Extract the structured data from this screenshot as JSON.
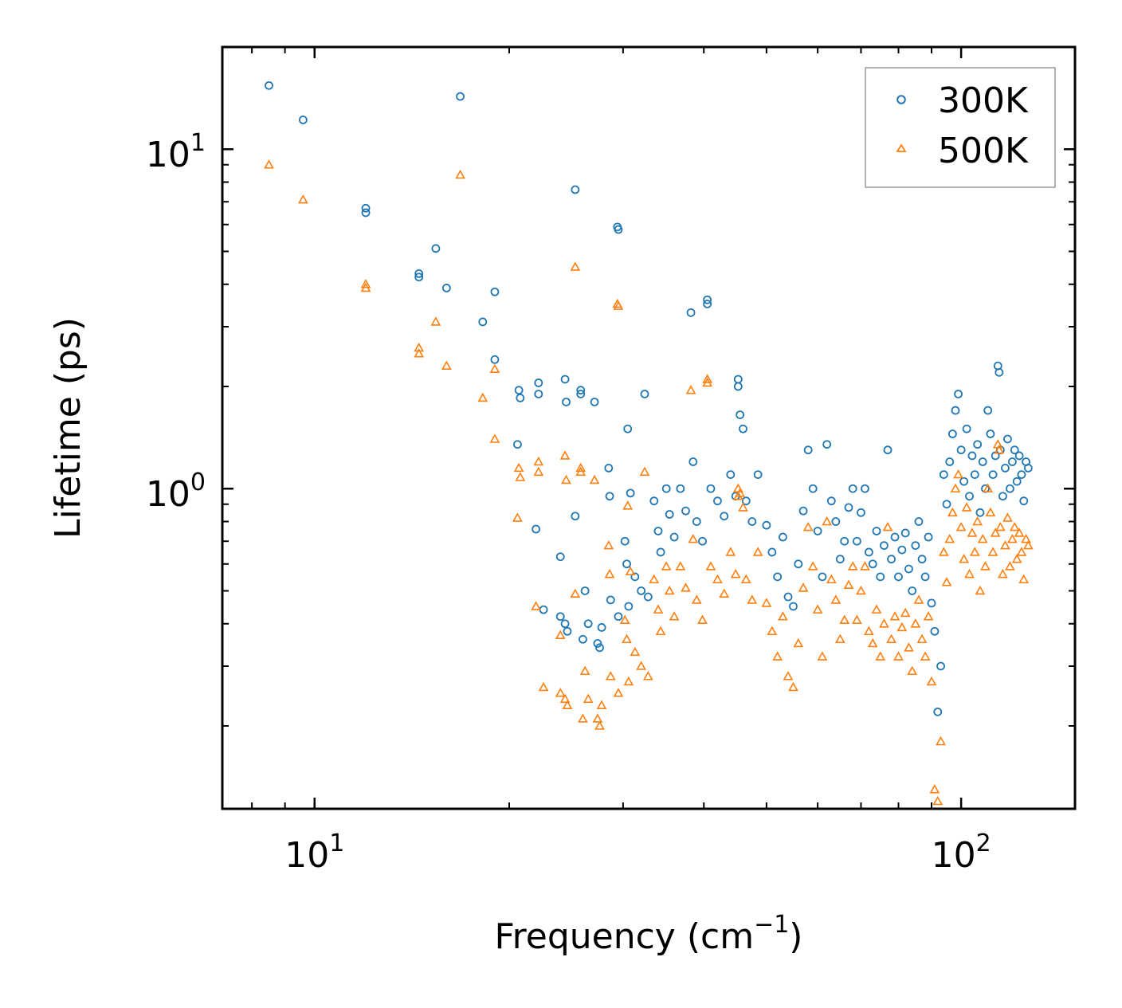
{
  "chart_data": {
    "type": "scatter",
    "title": "",
    "xlabel": "Frequency",
    "xlabel_unit_base": "(cm",
    "xlabel_unit_exp": "−1",
    "xlabel_unit_close": ")",
    "ylabel": "Lifetime (ps)",
    "xscale": "log",
    "yscale": "log",
    "xlim": [
      7.2,
      150
    ],
    "ylim": [
      0.114,
      20
    ],
    "grid": false,
    "legend_position": "top-right",
    "x_ticks": [
      {
        "value": 10,
        "base": "10",
        "exp": "1"
      },
      {
        "value": 100,
        "base": "10",
        "exp": "2"
      }
    ],
    "y_ticks": [
      {
        "value": 1,
        "base": "10",
        "exp": "0"
      },
      {
        "value": 10,
        "base": "10",
        "exp": "1"
      }
    ],
    "series": [
      {
        "name": "300K",
        "marker": "circle",
        "color": "#1f77b4",
        "points": [
          [
            8.5,
            15.4
          ],
          [
            9.6,
            12.2
          ],
          [
            12.0,
            6.7
          ],
          [
            12.0,
            6.5
          ],
          [
            14.5,
            4.3
          ],
          [
            14.5,
            4.2
          ],
          [
            15.4,
            5.1
          ],
          [
            16.0,
            3.9
          ],
          [
            16.8,
            14.3
          ],
          [
            18.2,
            3.1
          ],
          [
            19.0,
            3.8
          ],
          [
            19.0,
            2.4
          ],
          [
            20.7,
            1.95
          ],
          [
            20.8,
            1.85
          ],
          [
            20.6,
            1.35
          ],
          [
            22.2,
            2.05
          ],
          [
            22.2,
            1.9
          ],
          [
            22.0,
            0.76
          ],
          [
            22.6,
            0.44
          ],
          [
            24.0,
            0.42
          ],
          [
            24.4,
            0.4
          ],
          [
            24.6,
            0.38
          ],
          [
            24.0,
            0.63
          ],
          [
            24.4,
            2.1
          ],
          [
            24.5,
            1.8
          ],
          [
            25.3,
            7.6
          ],
          [
            25.3,
            0.83
          ],
          [
            25.8,
            1.95
          ],
          [
            25.8,
            1.9
          ],
          [
            26.0,
            0.36
          ],
          [
            26.2,
            0.5
          ],
          [
            26.5,
            0.4
          ],
          [
            27.1,
            1.8
          ],
          [
            27.4,
            0.35
          ],
          [
            27.6,
            0.34
          ],
          [
            27.8,
            0.39
          ],
          [
            28.5,
            1.15
          ],
          [
            28.6,
            0.95
          ],
          [
            28.7,
            0.47
          ],
          [
            29.4,
            5.9
          ],
          [
            29.5,
            5.8
          ],
          [
            29.5,
            0.42
          ],
          [
            30.2,
            0.7
          ],
          [
            30.4,
            0.6
          ],
          [
            30.5,
            1.5
          ],
          [
            30.8,
            0.97
          ],
          [
            30.6,
            0.45
          ],
          [
            31.3,
            0.55
          ],
          [
            32.0,
            0.5
          ],
          [
            32.4,
            1.9
          ],
          [
            32.8,
            0.48
          ],
          [
            33.5,
            0.92
          ],
          [
            34.0,
            0.75
          ],
          [
            34.3,
            0.65
          ],
          [
            35.0,
            1.0
          ],
          [
            35.4,
            0.84
          ],
          [
            36.0,
            0.72
          ],
          [
            36.8,
            1.0
          ],
          [
            37.5,
            0.86
          ],
          [
            38.2,
            3.3
          ],
          [
            38.5,
            1.2
          ],
          [
            39.0,
            0.8
          ],
          [
            39.8,
            0.7
          ],
          [
            40.5,
            3.6
          ],
          [
            40.5,
            3.5
          ],
          [
            41.0,
            1.0
          ],
          [
            42.0,
            0.92
          ],
          [
            43.0,
            0.83
          ],
          [
            44.0,
            1.1
          ],
          [
            44.8,
            0.95
          ],
          [
            45.2,
            2.1
          ],
          [
            45.2,
            2.0
          ],
          [
            45.5,
            1.65
          ],
          [
            46.0,
            1.5
          ],
          [
            46.5,
            0.92
          ],
          [
            47.5,
            0.8
          ],
          [
            48.5,
            1.1
          ],
          [
            50.0,
            0.78
          ],
          [
            51.0,
            0.65
          ],
          [
            52.0,
            0.55
          ],
          [
            53.0,
            0.72
          ],
          [
            54.0,
            0.48
          ],
          [
            55.0,
            0.45
          ],
          [
            56.0,
            0.6
          ],
          [
            57.0,
            0.86
          ],
          [
            58.0,
            1.3
          ],
          [
            59.0,
            1.0
          ],
          [
            60.0,
            0.75
          ],
          [
            61.0,
            0.55
          ],
          [
            62.0,
            1.35
          ],
          [
            63.0,
            0.92
          ],
          [
            64.0,
            0.8
          ],
          [
            65.0,
            0.62
          ],
          [
            66.0,
            0.7
          ],
          [
            67.0,
            0.88
          ],
          [
            68.0,
            1.0
          ],
          [
            69.0,
            0.7
          ],
          [
            70.0,
            0.85
          ],
          [
            71.0,
            1.0
          ],
          [
            72.0,
            0.65
          ],
          [
            73.0,
            0.6
          ],
          [
            74.0,
            0.75
          ],
          [
            75.0,
            0.55
          ],
          [
            76.0,
            0.68
          ],
          [
            77.0,
            1.3
          ],
          [
            78.0,
            0.62
          ],
          [
            79.0,
            0.72
          ],
          [
            80.0,
            0.55
          ],
          [
            81.0,
            0.66
          ],
          [
            82.0,
            0.74
          ],
          [
            83.0,
            0.58
          ],
          [
            84.0,
            0.5
          ],
          [
            85.0,
            0.68
          ],
          [
            86.0,
            0.8
          ],
          [
            87.0,
            0.62
          ],
          [
            88.0,
            0.55
          ],
          [
            89.0,
            0.72
          ],
          [
            90.0,
            0.46
          ],
          [
            91.0,
            0.38
          ],
          [
            92.0,
            0.22
          ],
          [
            93.0,
            0.3
          ],
          [
            94.0,
            1.1
          ],
          [
            95.0,
            0.9
          ],
          [
            96.0,
            1.2
          ],
          [
            97.0,
            1.45
          ],
          [
            98.0,
            1.7
          ],
          [
            99.0,
            1.9
          ],
          [
            100.0,
            1.3
          ],
          [
            101.0,
            1.05
          ],
          [
            102.0,
            1.5
          ],
          [
            103.0,
            0.95
          ],
          [
            104.0,
            1.25
          ],
          [
            105.0,
            1.1
          ],
          [
            106.0,
            1.35
          ],
          [
            107.0,
            0.85
          ],
          [
            108.0,
            1.2
          ],
          [
            109.0,
            1.0
          ],
          [
            110.0,
            1.7
          ],
          [
            111.0,
            1.45
          ],
          [
            112.0,
            1.1
          ],
          [
            113.0,
            1.25
          ],
          [
            114.0,
            2.3
          ],
          [
            114.5,
            2.2
          ],
          [
            115.0,
            1.3
          ],
          [
            116.0,
            0.95
          ],
          [
            117.0,
            1.15
          ],
          [
            118.0,
            1.4
          ],
          [
            119.0,
            1.0
          ],
          [
            120.0,
            1.2
          ],
          [
            121.0,
            1.3
          ],
          [
            122.0,
            1.05
          ],
          [
            123.0,
            1.25
          ],
          [
            124.0,
            1.1
          ],
          [
            125.0,
            0.92
          ],
          [
            126.0,
            1.2
          ],
          [
            127.0,
            1.15
          ]
        ]
      },
      {
        "name": "500K",
        "marker": "triangle",
        "color": "#ff7f0e",
        "points": [
          [
            8.5,
            9.0
          ],
          [
            9.6,
            7.1
          ],
          [
            12.0,
            4.0
          ],
          [
            12.0,
            3.9
          ],
          [
            14.5,
            2.6
          ],
          [
            14.5,
            2.5
          ],
          [
            15.4,
            3.1
          ],
          [
            16.0,
            2.3
          ],
          [
            16.8,
            8.4
          ],
          [
            18.2,
            1.85
          ],
          [
            19.0,
            2.25
          ],
          [
            19.0,
            1.4
          ],
          [
            20.7,
            1.15
          ],
          [
            20.8,
            1.08
          ],
          [
            20.6,
            0.82
          ],
          [
            22.2,
            1.2
          ],
          [
            22.2,
            1.12
          ],
          [
            22.0,
            0.45
          ],
          [
            22.6,
            0.26
          ],
          [
            24.0,
            0.25
          ],
          [
            24.4,
            0.24
          ],
          [
            24.6,
            0.23
          ],
          [
            24.0,
            0.37
          ],
          [
            24.4,
            1.25
          ],
          [
            24.5,
            1.06
          ],
          [
            25.3,
            4.5
          ],
          [
            25.3,
            0.49
          ],
          [
            25.8,
            1.15
          ],
          [
            25.8,
            1.12
          ],
          [
            26.0,
            0.21
          ],
          [
            26.2,
            0.29
          ],
          [
            26.5,
            0.24
          ],
          [
            27.1,
            1.06
          ],
          [
            27.4,
            0.21
          ],
          [
            27.6,
            0.2
          ],
          [
            27.8,
            0.23
          ],
          [
            28.5,
            0.68
          ],
          [
            28.6,
            0.56
          ],
          [
            28.7,
            0.28
          ],
          [
            29.4,
            3.5
          ],
          [
            29.5,
            3.45
          ],
          [
            29.5,
            0.25
          ],
          [
            30.2,
            0.41
          ],
          [
            30.4,
            0.36
          ],
          [
            30.5,
            0.89
          ],
          [
            30.8,
            0.57
          ],
          [
            30.6,
            0.27
          ],
          [
            31.3,
            0.33
          ],
          [
            32.0,
            0.3
          ],
          [
            32.4,
            1.12
          ],
          [
            32.8,
            0.28
          ],
          [
            33.5,
            0.54
          ],
          [
            34.0,
            0.44
          ],
          [
            34.3,
            0.38
          ],
          [
            35.0,
            0.59
          ],
          [
            35.4,
            0.5
          ],
          [
            36.0,
            0.42
          ],
          [
            36.8,
            0.59
          ],
          [
            37.5,
            0.51
          ],
          [
            38.2,
            1.95
          ],
          [
            38.5,
            0.71
          ],
          [
            39.0,
            0.47
          ],
          [
            39.8,
            0.41
          ],
          [
            40.5,
            2.1
          ],
          [
            40.5,
            2.05
          ],
          [
            41.0,
            0.59
          ],
          [
            42.0,
            0.54
          ],
          [
            43.0,
            0.49
          ],
          [
            44.0,
            0.65
          ],
          [
            44.8,
            0.56
          ],
          [
            45.2,
            1.0
          ],
          [
            45.2,
            0.95
          ],
          [
            45.5,
            0.97
          ],
          [
            46.0,
            0.88
          ],
          [
            46.5,
            0.54
          ],
          [
            47.5,
            0.47
          ],
          [
            48.5,
            0.65
          ],
          [
            50.0,
            0.46
          ],
          [
            51.0,
            0.38
          ],
          [
            52.0,
            0.32
          ],
          [
            53.0,
            0.42
          ],
          [
            54.0,
            0.28
          ],
          [
            55.0,
            0.26
          ],
          [
            56.0,
            0.35
          ],
          [
            57.0,
            0.51
          ],
          [
            58.0,
            0.77
          ],
          [
            59.0,
            0.59
          ],
          [
            60.0,
            0.44
          ],
          [
            61.0,
            0.32
          ],
          [
            62.0,
            0.8
          ],
          [
            63.0,
            0.54
          ],
          [
            64.0,
            0.47
          ],
          [
            65.0,
            0.36
          ],
          [
            66.0,
            0.41
          ],
          [
            67.0,
            0.52
          ],
          [
            68.0,
            0.59
          ],
          [
            69.0,
            0.41
          ],
          [
            70.0,
            0.5
          ],
          [
            71.0,
            0.59
          ],
          [
            72.0,
            0.38
          ],
          [
            73.0,
            0.35
          ],
          [
            74.0,
            0.44
          ],
          [
            75.0,
            0.32
          ],
          [
            76.0,
            0.4
          ],
          [
            77.0,
            0.77
          ],
          [
            78.0,
            0.36
          ],
          [
            79.0,
            0.42
          ],
          [
            80.0,
            0.32
          ],
          [
            81.0,
            0.39
          ],
          [
            82.0,
            0.43
          ],
          [
            83.0,
            0.34
          ],
          [
            84.0,
            0.29
          ],
          [
            85.0,
            0.4
          ],
          [
            86.0,
            0.47
          ],
          [
            87.0,
            0.36
          ],
          [
            88.0,
            0.32
          ],
          [
            89.0,
            0.42
          ],
          [
            90.0,
            0.27
          ],
          [
            91.0,
            0.13
          ],
          [
            92.0,
            0.12
          ],
          [
            93.0,
            0.18
          ],
          [
            94.0,
            0.65
          ],
          [
            95.0,
            0.53
          ],
          [
            96.0,
            0.71
          ],
          [
            97.0,
            0.85
          ],
          [
            98.0,
            1.0
          ],
          [
            99.0,
            1.1
          ],
          [
            100.0,
            0.77
          ],
          [
            101.0,
            0.62
          ],
          [
            102.0,
            0.88
          ],
          [
            103.0,
            0.56
          ],
          [
            104.0,
            0.74
          ],
          [
            105.0,
            0.65
          ],
          [
            106.0,
            0.8
          ],
          [
            107.0,
            0.5
          ],
          [
            108.0,
            0.71
          ],
          [
            109.0,
            0.59
          ],
          [
            110.0,
            1.0
          ],
          [
            111.0,
            0.85
          ],
          [
            112.0,
            0.65
          ],
          [
            113.0,
            0.74
          ],
          [
            114.0,
            1.35
          ],
          [
            114.5,
            1.3
          ],
          [
            115.0,
            0.77
          ],
          [
            116.0,
            0.56
          ],
          [
            117.0,
            0.68
          ],
          [
            118.0,
            0.82
          ],
          [
            119.0,
            0.59
          ],
          [
            120.0,
            0.71
          ],
          [
            121.0,
            0.77
          ],
          [
            122.0,
            0.62
          ],
          [
            123.0,
            0.74
          ],
          [
            124.0,
            0.65
          ],
          [
            125.0,
            0.54
          ],
          [
            126.0,
            0.71
          ],
          [
            127.0,
            0.68
          ]
        ]
      }
    ]
  }
}
